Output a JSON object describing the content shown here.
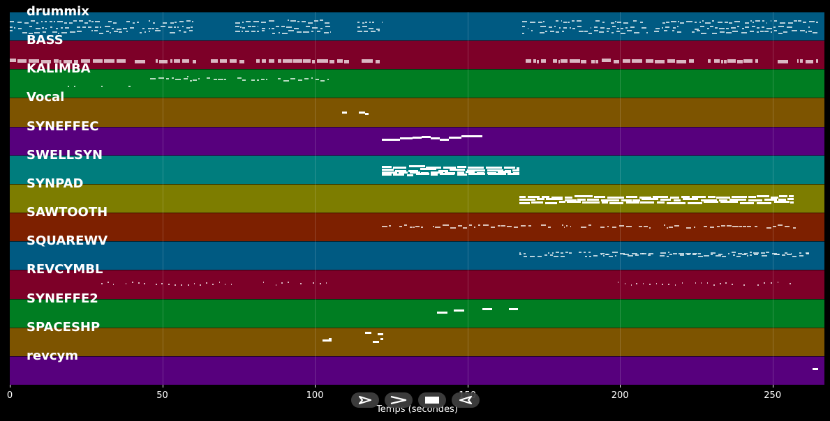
{
  "tracks": [
    {
      "name": "drummix",
      "color": "#005a82"
    },
    {
      "name": "BASS",
      "color": "#7d0028"
    },
    {
      "name": "KALIMBA",
      "color": "#007d22"
    },
    {
      "name": "Vocal",
      "color": "#7d5400"
    },
    {
      "name": "SYNEFFEC",
      "color": "#57007d"
    },
    {
      "name": "SWELLSYN",
      "color": "#007d7d"
    },
    {
      "name": "SYNPAD",
      "color": "#7d7d00"
    },
    {
      "name": "SAWTOOTH",
      "color": "#7d2000"
    },
    {
      "name": "SQUAREWV",
      "color": "#005a82"
    },
    {
      "name": "REVCYMBL",
      "color": "#7d0028"
    },
    {
      "name": "SYNEFFE2",
      "color": "#007d22"
    },
    {
      "name": "SPACESHP",
      "color": "#7d5400"
    },
    {
      "name": "revcym",
      "color": "#57007d"
    }
  ],
  "x_axis": {
    "label": "Temps (secondes)",
    "min": 0,
    "max": 267,
    "ticks": [
      0,
      50,
      100,
      150,
      200,
      250
    ]
  },
  "controls": [
    {
      "name": "play-outline-button",
      "icon": "play-outline-icon"
    },
    {
      "name": "play-button",
      "icon": "play-icon"
    },
    {
      "name": "stop-button",
      "icon": "stop-icon"
    },
    {
      "name": "rewind-button",
      "icon": "rewind-icon"
    }
  ],
  "notes": {
    "drummix": {
      "kind": "pattern",
      "ranges": [
        [
          0,
          60
        ],
        [
          74,
          105
        ],
        [
          114,
          122
        ],
        [
          168,
          265
        ]
      ],
      "rows": [
        0.35,
        0.55,
        0.7
      ],
      "dim": true
    },
    "BASS": {
      "kind": "pattern",
      "ranges": [
        [
          0,
          61
        ],
        [
          66,
          122
        ],
        [
          169,
          265
        ]
      ],
      "rows": [
        0.72
      ],
      "thick": true,
      "dim": true
    },
    "KALIMBA": {
      "kind": "pattern",
      "ranges": [
        [
          46,
          105
        ]
      ],
      "rows": [
        0.35
      ],
      "extra": [
        [
          19,
          0.6
        ],
        [
          21,
          0.6
        ],
        [
          30,
          0.6
        ],
        [
          39,
          0.6
        ],
        [
          58,
          0.25
        ]
      ],
      "dim": true
    },
    "Vocal": {
      "kind": "blocks",
      "items": [
        [
          109,
          110.5,
          0.5
        ],
        [
          114.5,
          116.5,
          0.5
        ],
        [
          116.5,
          117.5,
          0.55
        ]
      ]
    },
    "SYNEFFEC": {
      "kind": "blocks",
      "items": [
        [
          122,
          128,
          0.45
        ],
        [
          128,
          132,
          0.42
        ],
        [
          132,
          135,
          0.38
        ],
        [
          135,
          138,
          0.35
        ],
        [
          138,
          141,
          0.4
        ],
        [
          141,
          144,
          0.45
        ],
        [
          144,
          148,
          0.38
        ],
        [
          148,
          155,
          0.34
        ]
      ]
    },
    "SWELLSYN": {
      "kind": "dense",
      "range": [
        122,
        167
      ],
      "rows": [
        0.42,
        0.52,
        0.6,
        0.68
      ]
    },
    "SYNPAD": {
      "kind": "dense",
      "range": [
        167,
        257
      ],
      "rows": [
        0.45,
        0.55,
        0.65
      ]
    },
    "SAWTOOTH": {
      "kind": "pattern",
      "ranges": [
        [
          122,
          260
        ]
      ],
      "rows": [
        0.48
      ],
      "dim": true
    },
    "SQUAREWV": {
      "kind": "pattern",
      "ranges": [
        [
          167,
          262
        ]
      ],
      "rows": [
        0.48,
        0.42
      ],
      "dim": true
    },
    "REVCYMBL": {
      "kind": "pattern",
      "ranges": [
        [
          30,
          74
        ],
        [
          83,
          104
        ],
        [
          197,
          256
        ]
      ],
      "rows": [
        0.48
      ],
      "sparse": true,
      "dim": true
    },
    "SYNEFFE2": {
      "kind": "blocks",
      "items": [
        [
          140,
          143.5,
          0.48
        ],
        [
          145.5,
          149,
          0.4
        ],
        [
          155,
          158,
          0.36
        ],
        [
          163.5,
          166.5,
          0.36
        ]
      ]
    },
    "SPACESHP": {
      "kind": "blocks",
      "items": [
        [
          102.5,
          105.5,
          0.45
        ],
        [
          104.5,
          105.5,
          0.4
        ],
        [
          116.5,
          118.5,
          0.2
        ],
        [
          119,
          121,
          0.5
        ],
        [
          120.5,
          122.5,
          0.25
        ],
        [
          121.5,
          122.3,
          0.42
        ]
      ]
    },
    "revcym": {
      "kind": "blocks",
      "items": [
        [
          263,
          265,
          0.45
        ]
      ]
    }
  }
}
